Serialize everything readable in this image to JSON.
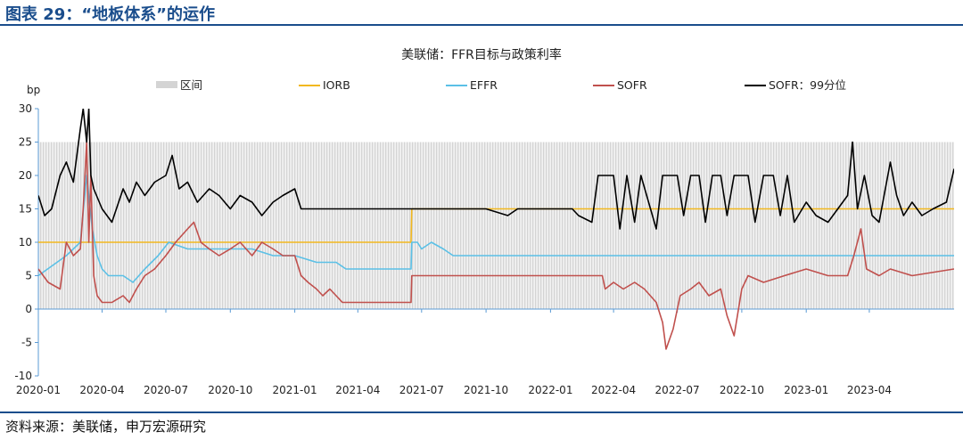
{
  "figure": {
    "title": "图表 29：“地板体系”的运作",
    "source": "资料来源：美联储，申万宏源研究"
  },
  "chart_data": {
    "type": "line",
    "title": "美联储：FFR目标与政策利率",
    "ylabel": "bp",
    "ylim": [
      -10,
      30
    ],
    "yticks": [
      "30",
      "25",
      "20",
      "15",
      "10",
      "5",
      "0",
      "-5",
      "-10"
    ],
    "xlim": [
      "2020-01",
      "2023-07"
    ],
    "xticks": [
      "2020-01",
      "2020-04",
      "2020-07",
      "2020-10",
      "2021-01",
      "2021-04",
      "2021-07",
      "2021-10",
      "2022-01",
      "2022-04",
      "2022-07",
      "2022-10",
      "2023-01",
      "2023-04"
    ],
    "legend": {
      "placement": "top"
    },
    "band": {
      "name": "区间",
      "low": 0,
      "high": 25,
      "color": "#d4d4d4"
    },
    "series": [
      {
        "name": "IORB",
        "color": "#f2b81f",
        "points": [
          [
            "2020-01-01",
            10
          ],
          [
            "2021-06-16",
            10
          ],
          [
            "2021-06-17",
            15
          ],
          [
            "2023-07-31",
            15
          ]
        ]
      },
      {
        "name": "EFFR",
        "color": "#5bc0e6",
        "points": [
          [
            "2020-01-01",
            5
          ],
          [
            "2020-02-10",
            8
          ],
          [
            "2020-03-01",
            10
          ],
          [
            "2020-03-10",
            20
          ],
          [
            "2020-03-18",
            12
          ],
          [
            "2020-03-25",
            8
          ],
          [
            "2020-04-01",
            6
          ],
          [
            "2020-04-10",
            5
          ],
          [
            "2020-05-01",
            5
          ],
          [
            "2020-05-15",
            4
          ],
          [
            "2020-06-01",
            6
          ],
          [
            "2020-06-20",
            8
          ],
          [
            "2020-07-05",
            10
          ],
          [
            "2020-08-01",
            9
          ],
          [
            "2020-09-01",
            9
          ],
          [
            "2020-10-01",
            9
          ],
          [
            "2020-11-01",
            9
          ],
          [
            "2020-12-01",
            8
          ],
          [
            "2021-01-01",
            8
          ],
          [
            "2021-02-01",
            7
          ],
          [
            "2021-03-01",
            7
          ],
          [
            "2021-03-15",
            6
          ],
          [
            "2021-04-01",
            6
          ],
          [
            "2021-05-01",
            6
          ],
          [
            "2021-06-16",
            6
          ],
          [
            "2021-06-17",
            10
          ],
          [
            "2021-06-25",
            10
          ],
          [
            "2021-07-01",
            9
          ],
          [
            "2021-07-15",
            10
          ],
          [
            "2021-08-01",
            9
          ],
          [
            "2021-08-15",
            8
          ],
          [
            "2021-09-01",
            8
          ],
          [
            "2021-12-01",
            8
          ],
          [
            "2022-03-16",
            8
          ],
          [
            "2023-04-15",
            8
          ],
          [
            "2023-07-31",
            8
          ]
        ]
      },
      {
        "name": "SOFR",
        "color": "#c0504d",
        "points": [
          [
            "2020-01-01",
            6
          ],
          [
            "2020-01-15",
            4
          ],
          [
            "2020-02-01",
            3
          ],
          [
            "2020-02-10",
            10
          ],
          [
            "2020-02-20",
            8
          ],
          [
            "2020-03-01",
            9
          ],
          [
            "2020-03-05",
            15
          ],
          [
            "2020-03-10",
            25
          ],
          [
            "2020-03-13",
            10
          ],
          [
            "2020-03-16",
            20
          ],
          [
            "2020-03-20",
            5
          ],
          [
            "2020-03-25",
            2
          ],
          [
            "2020-04-01",
            1
          ],
          [
            "2020-04-15",
            1
          ],
          [
            "2020-05-01",
            2
          ],
          [
            "2020-05-10",
            1
          ],
          [
            "2020-05-20",
            3
          ],
          [
            "2020-06-01",
            5
          ],
          [
            "2020-06-15",
            6
          ],
          [
            "2020-07-01",
            8
          ],
          [
            "2020-07-15",
            10
          ],
          [
            "2020-08-01",
            12
          ],
          [
            "2020-08-10",
            13
          ],
          [
            "2020-08-20",
            10
          ],
          [
            "2020-09-01",
            9
          ],
          [
            "2020-09-15",
            8
          ],
          [
            "2020-10-01",
            9
          ],
          [
            "2020-10-15",
            10
          ],
          [
            "2020-11-01",
            8
          ],
          [
            "2020-11-15",
            10
          ],
          [
            "2020-12-01",
            9
          ],
          [
            "2020-12-15",
            8
          ],
          [
            "2021-01-01",
            8
          ],
          [
            "2021-01-10",
            5
          ],
          [
            "2021-01-20",
            4
          ],
          [
            "2021-02-01",
            3
          ],
          [
            "2021-02-10",
            2
          ],
          [
            "2021-02-20",
            3
          ],
          [
            "2021-03-01",
            2
          ],
          [
            "2021-03-10",
            1
          ],
          [
            "2021-03-20",
            1
          ],
          [
            "2021-04-15",
            1
          ],
          [
            "2021-05-15",
            1
          ],
          [
            "2021-06-16",
            1
          ],
          [
            "2021-06-17",
            5
          ],
          [
            "2021-08-01",
            5
          ],
          [
            "2021-10-01",
            5
          ],
          [
            "2021-12-01",
            5
          ],
          [
            "2022-02-01",
            5
          ],
          [
            "2022-03-16",
            5
          ],
          [
            "2022-03-20",
            3
          ],
          [
            "2022-04-01",
            4
          ],
          [
            "2022-04-15",
            3
          ],
          [
            "2022-05-01",
            4
          ],
          [
            "2022-05-15",
            3
          ],
          [
            "2022-06-01",
            1
          ],
          [
            "2022-06-10",
            -2
          ],
          [
            "2022-06-15",
            -6
          ],
          [
            "2022-06-25",
            -3
          ],
          [
            "2022-07-05",
            2
          ],
          [
            "2022-07-20",
            3
          ],
          [
            "2022-08-01",
            4
          ],
          [
            "2022-08-15",
            2
          ],
          [
            "2022-09-01",
            3
          ],
          [
            "2022-09-10",
            -1
          ],
          [
            "2022-09-20",
            -4
          ],
          [
            "2022-10-01",
            3
          ],
          [
            "2022-10-10",
            5
          ],
          [
            "2022-11-01",
            4
          ],
          [
            "2022-12-01",
            5
          ],
          [
            "2023-01-01",
            6
          ],
          [
            "2023-02-01",
            5
          ],
          [
            "2023-03-01",
            5
          ],
          [
            "2023-03-10",
            8
          ],
          [
            "2023-03-20",
            12
          ],
          [
            "2023-03-28",
            6
          ],
          [
            "2023-04-15",
            5
          ],
          [
            "2023-05-01",
            6
          ],
          [
            "2023-06-01",
            5
          ],
          [
            "2023-07-31",
            6
          ]
        ]
      },
      {
        "name": "SOFR：99分位",
        "color": "#000000",
        "points": [
          [
            "2020-01-01",
            17
          ],
          [
            "2020-01-10",
            14
          ],
          [
            "2020-01-20",
            15
          ],
          [
            "2020-02-01",
            20
          ],
          [
            "2020-02-10",
            22
          ],
          [
            "2020-02-20",
            19
          ],
          [
            "2020-03-01",
            27
          ],
          [
            "2020-03-05",
            30
          ],
          [
            "2020-03-10",
            25
          ],
          [
            "2020-03-13",
            30
          ],
          [
            "2020-03-16",
            20
          ],
          [
            "2020-03-20",
            18
          ],
          [
            "2020-04-01",
            15
          ],
          [
            "2020-04-15",
            13
          ],
          [
            "2020-05-01",
            18
          ],
          [
            "2020-05-10",
            16
          ],
          [
            "2020-05-20",
            19
          ],
          [
            "2020-06-01",
            17
          ],
          [
            "2020-06-15",
            19
          ],
          [
            "2020-07-01",
            20
          ],
          [
            "2020-07-10",
            23
          ],
          [
            "2020-07-20",
            18
          ],
          [
            "2020-08-01",
            19
          ],
          [
            "2020-08-15",
            16
          ],
          [
            "2020-09-01",
            18
          ],
          [
            "2020-09-15",
            17
          ],
          [
            "2020-10-01",
            15
          ],
          [
            "2020-10-15",
            17
          ],
          [
            "2020-11-01",
            16
          ],
          [
            "2020-11-15",
            14
          ],
          [
            "2020-12-01",
            16
          ],
          [
            "2020-12-15",
            17
          ],
          [
            "2021-01-01",
            18
          ],
          [
            "2021-01-10",
            15
          ],
          [
            "2021-02-01",
            15
          ],
          [
            "2021-06-01",
            15
          ],
          [
            "2021-10-01",
            15
          ],
          [
            "2021-11-01",
            14
          ],
          [
            "2021-11-15",
            15
          ],
          [
            "2022-02-01",
            15
          ],
          [
            "2022-02-10",
            14
          ],
          [
            "2022-03-01",
            13
          ],
          [
            "2022-03-10",
            20
          ],
          [
            "2022-04-01",
            20
          ],
          [
            "2022-04-10",
            12
          ],
          [
            "2022-04-20",
            20
          ],
          [
            "2022-05-01",
            13
          ],
          [
            "2022-05-10",
            20
          ],
          [
            "2022-06-01",
            12
          ],
          [
            "2022-06-10",
            20
          ],
          [
            "2022-07-01",
            20
          ],
          [
            "2022-07-10",
            14
          ],
          [
            "2022-07-20",
            20
          ],
          [
            "2022-08-01",
            20
          ],
          [
            "2022-08-10",
            13
          ],
          [
            "2022-08-20",
            20
          ],
          [
            "2022-09-01",
            20
          ],
          [
            "2022-09-10",
            14
          ],
          [
            "2022-09-20",
            20
          ],
          [
            "2022-10-10",
            20
          ],
          [
            "2022-10-20",
            13
          ],
          [
            "2022-11-01",
            20
          ],
          [
            "2022-11-15",
            20
          ],
          [
            "2022-11-25",
            14
          ],
          [
            "2022-12-05",
            20
          ],
          [
            "2022-12-15",
            13
          ],
          [
            "2023-01-01",
            16
          ],
          [
            "2023-01-15",
            14
          ],
          [
            "2023-02-01",
            13
          ],
          [
            "2023-02-15",
            15
          ],
          [
            "2023-03-01",
            17
          ],
          [
            "2023-03-08",
            25
          ],
          [
            "2023-03-15",
            15
          ],
          [
            "2023-03-25",
            20
          ],
          [
            "2023-04-05",
            14
          ],
          [
            "2023-04-15",
            13
          ],
          [
            "2023-05-01",
            22
          ],
          [
            "2023-05-10",
            17
          ],
          [
            "2023-05-20",
            14
          ],
          [
            "2023-06-01",
            16
          ],
          [
            "2023-06-15",
            14
          ],
          [
            "2023-07-01",
            15
          ],
          [
            "2023-07-20",
            16
          ],
          [
            "2023-07-31",
            21
          ]
        ]
      }
    ]
  }
}
